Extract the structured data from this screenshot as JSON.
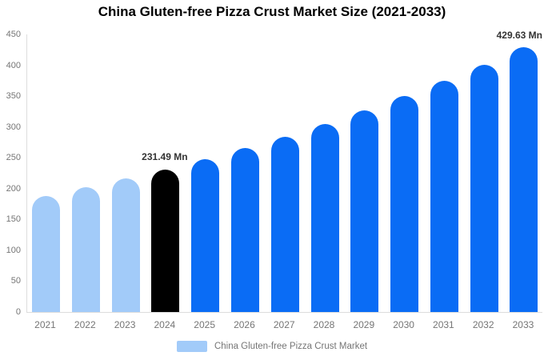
{
  "title": "China Gluten-free Pizza Crust Market Size (2021-2033)",
  "chart_data": {
    "type": "bar",
    "title": "China Gluten-free Pizza Crust Market Size (2021-2033)",
    "categories": [
      "2021",
      "2022",
      "2023",
      "2024",
      "2025",
      "2026",
      "2027",
      "2028",
      "2029",
      "2030",
      "2031",
      "2032",
      "2033"
    ],
    "values": [
      188.4,
      201.8,
      216.1,
      231.49,
      247.9,
      265.6,
      284.5,
      304.7,
      326.4,
      349.6,
      374.5,
      401.1,
      429.63
    ],
    "unit": "Mn",
    "bar_colors": [
      "#A2CBF9",
      "#A2CBF9",
      "#A2CBF9",
      "#000000",
      "#0A6CF5",
      "#0A6CF5",
      "#0A6CF5",
      "#0A6CF5",
      "#0A6CF5",
      "#0A6CF5",
      "#0A6CF5",
      "#0A6CF5",
      "#0A6CF5"
    ],
    "xlabel": "",
    "ylabel": "",
    "ylim": [
      0,
      450
    ],
    "y_ticks": [
      0,
      50,
      100,
      150,
      200,
      250,
      300,
      350,
      400,
      450
    ],
    "grid": "off",
    "legend_position": "bottom",
    "annotations": [
      {
        "category": "2024",
        "text": "231.49 Mn"
      },
      {
        "category": "2033",
        "text": "429.63 Mn"
      }
    ]
  },
  "legend": {
    "label": "China Gluten-free Pizza Crust Market",
    "swatch_color": "#A2CBF9"
  },
  "colors": {
    "historical_bar": "#A2CBF9",
    "highlight_bar": "#000000",
    "forecast_bar": "#0A6CF5",
    "axis_line": "#DDDDDD",
    "tick_text": "#757575",
    "annotation_text": "#333333",
    "title_text": "#000000",
    "background": "#FFFFFF"
  }
}
